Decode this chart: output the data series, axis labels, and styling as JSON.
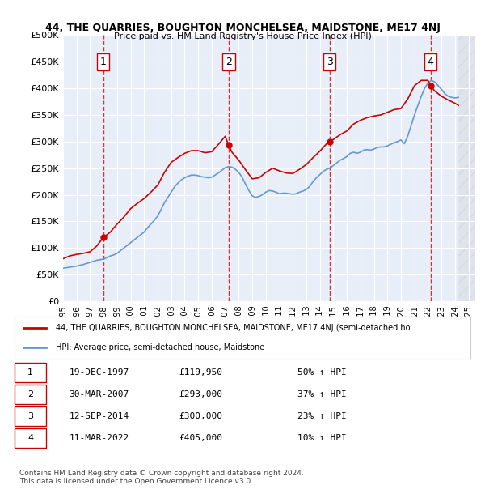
{
  "title1": "44, THE QUARRIES, BOUGHTON MONCHELSEA, MAIDSTONE, ME17 4NJ",
  "title2": "Price paid vs. HM Land Registry's House Price Index (HPI)",
  "ylabel_ticks": [
    "£0",
    "£50K",
    "£100K",
    "£150K",
    "£200K",
    "£250K",
    "£300K",
    "£350K",
    "£400K",
    "£450K",
    "£500K"
  ],
  "ytick_values": [
    0,
    50000,
    100000,
    150000,
    200000,
    250000,
    300000,
    350000,
    400000,
    450000,
    500000
  ],
  "xlim_start": 1995.0,
  "xlim_end": 2025.5,
  "ylim_min": 0,
  "ylim_max": 500000,
  "background_color": "#e8eef8",
  "plot_bg_color": "#e8eef8",
  "grid_color": "#ffffff",
  "sale_dates": [
    1997.97,
    2007.25,
    2014.71,
    2022.19
  ],
  "sale_prices": [
    119950,
    293000,
    300000,
    405000
  ],
  "sale_labels": [
    "1",
    "2",
    "3",
    "4"
  ],
  "dashed_line_color": "#cc0000",
  "sale_marker_color": "#cc0000",
  "hpi_line_color": "#6699cc",
  "price_line_color": "#cc0000",
  "legend_label_price": "44, THE QUARRIES, BOUGHTON MONCHELSEA, MAIDSTONE, ME17 4NJ (semi-detached ho",
  "legend_label_hpi": "HPI: Average price, semi-detached house, Maidstone",
  "table_data": [
    {
      "num": "1",
      "date": "19-DEC-1997",
      "price": "£119,950",
      "pct": "50% ↑ HPI"
    },
    {
      "num": "2",
      "date": "30-MAR-2007",
      "price": "£293,000",
      "pct": "37% ↑ HPI"
    },
    {
      "num": "3",
      "date": "12-SEP-2014",
      "price": "£300,000",
      "pct": "23% ↑ HPI"
    },
    {
      "num": "4",
      "date": "11-MAR-2022",
      "price": "£405,000",
      "pct": "10% ↑ HPI"
    }
  ],
  "footnote": "Contains HM Land Registry data © Crown copyright and database right 2024.\nThis data is licensed under the Open Government Licence v3.0.",
  "hpi_data_x": [
    1995.0,
    1995.25,
    1995.5,
    1995.75,
    1996.0,
    1996.25,
    1996.5,
    1996.75,
    1997.0,
    1997.25,
    1997.5,
    1997.75,
    1998.0,
    1998.25,
    1998.5,
    1998.75,
    1999.0,
    1999.25,
    1999.5,
    1999.75,
    2000.0,
    2000.25,
    2000.5,
    2000.75,
    2001.0,
    2001.25,
    2001.5,
    2001.75,
    2002.0,
    2002.25,
    2002.5,
    2002.75,
    2003.0,
    2003.25,
    2003.5,
    2003.75,
    2004.0,
    2004.25,
    2004.5,
    2004.75,
    2005.0,
    2005.25,
    2005.5,
    2005.75,
    2006.0,
    2006.25,
    2006.5,
    2006.75,
    2007.0,
    2007.25,
    2007.5,
    2007.75,
    2008.0,
    2008.25,
    2008.5,
    2008.75,
    2009.0,
    2009.25,
    2009.5,
    2009.75,
    2010.0,
    2010.25,
    2010.5,
    2010.75,
    2011.0,
    2011.25,
    2011.5,
    2011.75,
    2012.0,
    2012.25,
    2012.5,
    2012.75,
    2013.0,
    2013.25,
    2013.5,
    2013.75,
    2014.0,
    2014.25,
    2014.5,
    2014.75,
    2015.0,
    2015.25,
    2015.5,
    2015.75,
    2016.0,
    2016.25,
    2016.5,
    2016.75,
    2017.0,
    2017.25,
    2017.5,
    2017.75,
    2018.0,
    2018.25,
    2018.5,
    2018.75,
    2019.0,
    2019.25,
    2019.5,
    2019.75,
    2020.0,
    2020.25,
    2020.5,
    2020.75,
    2021.0,
    2021.25,
    2021.5,
    2021.75,
    2022.0,
    2022.25,
    2022.5,
    2022.75,
    2023.0,
    2023.25,
    2023.5,
    2023.75,
    2024.0,
    2024.25
  ],
  "hpi_data_y": [
    62000,
    63000,
    64000,
    65000,
    66000,
    67500,
    69000,
    71000,
    73000,
    75000,
    77000,
    78000,
    79000,
    82000,
    85000,
    87000,
    90000,
    95000,
    100000,
    105000,
    110000,
    115000,
    120000,
    125000,
    130000,
    138000,
    145000,
    152000,
    160000,
    172000,
    185000,
    195000,
    205000,
    215000,
    222000,
    228000,
    232000,
    235000,
    237000,
    237000,
    236000,
    234000,
    233000,
    232000,
    233000,
    237000,
    241000,
    246000,
    251000,
    253000,
    252000,
    248000,
    242000,
    233000,
    220000,
    208000,
    198000,
    195000,
    197000,
    200000,
    205000,
    208000,
    207000,
    205000,
    202000,
    203000,
    203000,
    202000,
    201000,
    202000,
    205000,
    207000,
    210000,
    216000,
    225000,
    232000,
    238000,
    244000,
    248000,
    250000,
    255000,
    260000,
    265000,
    268000,
    272000,
    278000,
    280000,
    278000,
    280000,
    284000,
    285000,
    284000,
    286000,
    289000,
    290000,
    290000,
    292000,
    295000,
    298000,
    300000,
    303000,
    296000,
    310000,
    330000,
    350000,
    368000,
    385000,
    400000,
    410000,
    415000,
    412000,
    405000,
    398000,
    390000,
    385000,
    383000,
    382000,
    383000
  ],
  "price_line_x": [
    1995.0,
    1995.5,
    1996.0,
    1996.5,
    1997.0,
    1997.5,
    1997.97,
    1998.0,
    1998.5,
    1999.0,
    1999.5,
    2000.0,
    2000.5,
    2001.0,
    2001.5,
    2002.0,
    2002.5,
    2003.0,
    2003.5,
    2004.0,
    2004.5,
    2005.0,
    2005.5,
    2006.0,
    2006.5,
    2007.0,
    2007.25,
    2007.5,
    2008.0,
    2008.5,
    2009.0,
    2009.5,
    2010.0,
    2010.5,
    2011.0,
    2011.5,
    2012.0,
    2012.5,
    2013.0,
    2013.5,
    2014.0,
    2014.5,
    2014.71,
    2015.0,
    2015.5,
    2016.0,
    2016.5,
    2017.0,
    2017.5,
    2018.0,
    2018.5,
    2019.0,
    2019.5,
    2020.0,
    2020.5,
    2021.0,
    2021.5,
    2022.0,
    2022.19,
    2022.5,
    2023.0,
    2023.5,
    2024.0,
    2024.25
  ],
  "price_line_y": [
    79840,
    85210,
    87947,
    90000,
    93000,
    103753,
    119950,
    119950,
    130000,
    145000,
    158206,
    174000,
    184000,
    193000,
    205000,
    218000,
    242000,
    261000,
    270000,
    278000,
    283000,
    283000,
    279000,
    281000,
    295000,
    310000,
    293000,
    280000,
    265000,
    247000,
    230000,
    232000,
    242000,
    250000,
    245000,
    241000,
    240000,
    248000,
    257000,
    270000,
    282000,
    296000,
    300000,
    304000,
    313000,
    320000,
    333000,
    340000,
    345000,
    348000,
    350000,
    355000,
    360000,
    362000,
    380000,
    405000,
    415000,
    415000,
    405000,
    395000,
    385000,
    378000,
    372000,
    368000
  ]
}
